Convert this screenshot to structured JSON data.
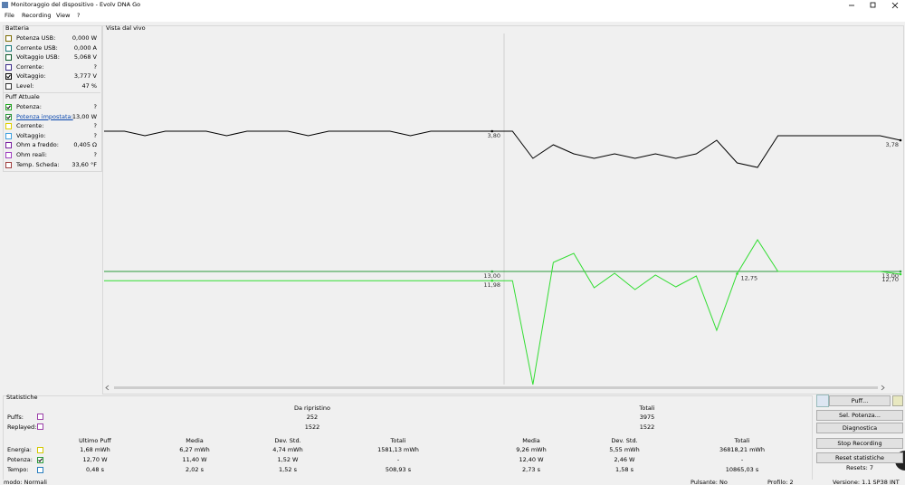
{
  "window": {
    "title": "Monitoraggio del dispositivo - Evolv DNA Go",
    "menu": [
      "File",
      "Recording",
      "View",
      "?"
    ]
  },
  "battery": {
    "title": "Batteria",
    "rows": [
      {
        "label": "Potenza USB:",
        "value": "0,000 W",
        "color": "#7a6a00",
        "checked": false
      },
      {
        "label": "Corrente USB:",
        "value": "0,000 A",
        "color": "#1a7a7a",
        "checked": false
      },
      {
        "label": "Voltaggio USB:",
        "value": "5,068 V",
        "color": "#0a5a2a",
        "checked": false
      },
      {
        "label": "Corrente:",
        "value": "?",
        "color": "#3a2a8a",
        "checked": false
      },
      {
        "label": "Voltaggio:",
        "value": "3,777 V",
        "color": "#000000",
        "checked": true
      },
      {
        "label": "Level:",
        "value": "47 %",
        "color": "#333333",
        "checked": false
      }
    ]
  },
  "puff": {
    "title": "Puff Attuale",
    "rows": [
      {
        "label": "Potenza:",
        "value": "?",
        "color": "#22aa22",
        "checked": true
      },
      {
        "label": "Potenza impostata:",
        "value": "13,00 W",
        "color": "#2a9a3a",
        "checked": true,
        "link": true
      },
      {
        "label": "Corrente:",
        "value": "?",
        "color": "#e0d000",
        "checked": false
      },
      {
        "label": "Voltaggio:",
        "value": "?",
        "color": "#40a0e0",
        "checked": false
      },
      {
        "label": "Ohm a freddo:",
        "value": "0,405 Ω",
        "color": "#7a20a0",
        "checked": false
      },
      {
        "label": "Ohm reali:",
        "value": "?",
        "color": "#a040c0",
        "checked": false
      },
      {
        "label": "Temp. Scheda:",
        "value": "33,60 °F",
        "color": "#a04040",
        "checked": false
      }
    ]
  },
  "live_view": {
    "type": "line",
    "title": "Vista dal vivo",
    "series": [
      {
        "color": "#000000",
        "unit": "V",
        "values": [
          3.8,
          3.8,
          3.79,
          3.8,
          3.8,
          3.8,
          3.79,
          3.8,
          3.8,
          3.8,
          3.79,
          3.8,
          3.8,
          3.8,
          3.8,
          3.79,
          3.8,
          3.8,
          3.8,
          3.8,
          3.8,
          3.74,
          3.77,
          3.75,
          3.74,
          3.75,
          3.74,
          3.75,
          3.74,
          3.75,
          3.78,
          3.73,
          3.72,
          3.79,
          3.79,
          3.79,
          3.79,
          3.79,
          3.79,
          3.78
        ],
        "point_labels": [
          {
            "index": 19,
            "value": 3.8,
            "label": "3,80"
          },
          {
            "index": 39,
            "value": 3.78,
            "label": "3,78"
          }
        ]
      },
      {
        "color": "#2a9a3a",
        "unit": "W",
        "values": [
          13.0,
          13.0,
          13.0,
          13.0,
          13.0,
          13.0,
          13.0,
          13.0,
          13.0,
          13.0,
          13.0,
          13.0,
          13.0,
          13.0,
          13.0,
          13.0,
          13.0,
          13.0,
          13.0,
          13.0,
          13.0,
          13.0,
          13.0,
          13.0,
          13.0,
          13.0,
          13.0,
          13.0,
          13.0,
          13.0,
          13.0,
          13.0,
          13.0,
          13.0,
          13.0,
          13.0,
          13.0,
          13.0,
          13.0,
          13.0
        ],
        "point_labels": [
          {
            "index": 19,
            "value": 13.0,
            "label": "13,00"
          },
          {
            "index": 39,
            "value": 13.0,
            "label": "13,00"
          }
        ]
      },
      {
        "color": "#33dd33",
        "unit": "W",
        "values": [
          11.98,
          11.98,
          11.98,
          11.98,
          11.98,
          11.98,
          11.98,
          11.98,
          11.98,
          11.98,
          11.98,
          11.98,
          11.98,
          11.98,
          11.98,
          11.98,
          11.98,
          11.98,
          11.98,
          11.98,
          11.98,
          0.5,
          14.0,
          15.0,
          11.2,
          12.8,
          11.0,
          12.6,
          11.3,
          12.5,
          6.5,
          12.75,
          16.5,
          13.0,
          13.0,
          13.0,
          13.0,
          13.0,
          13.0,
          12.7
        ],
        "point_labels": [
          {
            "index": 19,
            "value": 11.98,
            "label": "11,98"
          },
          {
            "index": 31,
            "value": 12.75,
            "label": "12,75"
          },
          {
            "index": 39,
            "value": 12.7,
            "label": "12,70"
          }
        ]
      }
    ]
  },
  "stats": {
    "title": "Statistiche",
    "groups": [
      "Da ripristino",
      "Totali"
    ],
    "count_rows": [
      {
        "label": "Puffs:",
        "color": "#9b3fa8",
        "values": [
          "252",
          "3975"
        ]
      },
      {
        "label": "Replayed:",
        "color": "#9b3fa8",
        "values": [
          "1522",
          "1522"
        ]
      }
    ],
    "columns": [
      "Ultimo Puff",
      "Media",
      "Dev. Std.",
      "Totali",
      "Media",
      "Dev. Std.",
      "Totali"
    ],
    "rows": [
      {
        "label": "Energia:",
        "color": "#d4c800",
        "checked": false,
        "cells": [
          "1,68 mWh",
          "6,27 mWh",
          "4,74 mWh",
          "1581,13 mWh",
          "9,26 mWh",
          "5,55 mWh",
          "36818,21 mWh"
        ]
      },
      {
        "label": "Potenza:",
        "color": "#2a9a3a",
        "checked": true,
        "cells": [
          "12,70 W",
          "11,40 W",
          "1,52 W",
          "-",
          "12,40 W",
          "2,46 W",
          "-"
        ]
      },
      {
        "label": "Tempo:",
        "color": "#2a7fbf",
        "checked": false,
        "cells": [
          "0,48 s",
          "2,02 s",
          "1,52 s",
          "508,93 s",
          "2,73 s",
          "1,58 s",
          "10865,03 s"
        ]
      }
    ]
  },
  "buttons": [
    "Puff...",
    "Sel. Potenza...",
    "Diagnostica",
    "Stop Recording",
    "Reset statistiche"
  ],
  "resets": "Resets: 7",
  "status": [
    "modo: Normali",
    "Pulsante: No",
    "Profilo: 2",
    "Versione: 1.1 SP38 INT"
  ]
}
